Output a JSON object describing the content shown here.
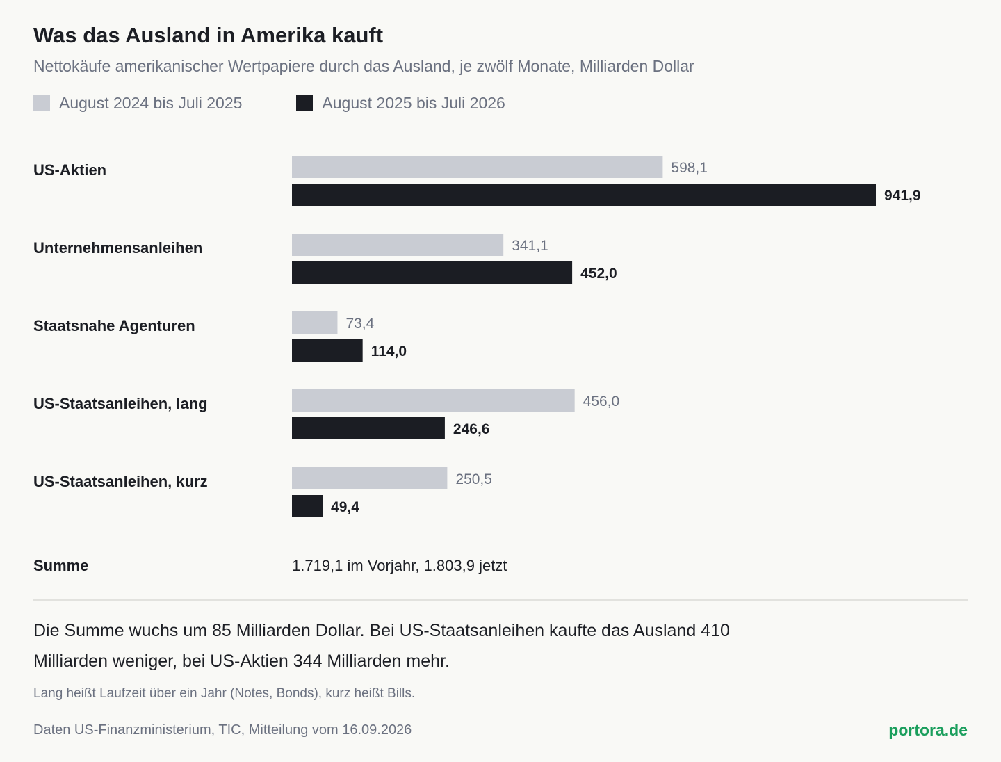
{
  "header": {
    "title": "Was das Ausland in Amerika kauft",
    "subtitle": "Nettokäufe amerikanischer Wertpapiere durch das Ausland, je zwölf Monate, Milliarden Dollar"
  },
  "legend": [
    {
      "label": "August 2024 bis Juli 2025",
      "color": "#c9ccd3"
    },
    {
      "label": "August 2025 bis Juli 2026",
      "color": "#1b1d23"
    }
  ],
  "chart_data": {
    "type": "bar",
    "orientation": "horizontal",
    "categories": [
      "US-Aktien",
      "Unternehmensanleihen",
      "Staatsnahe Agenturen",
      "US-Staatsanleihen, lang",
      "US-Staatsanleihen, kurz"
    ],
    "series": [
      {
        "name": "August 2024 bis Juli 2025",
        "values": [
          598.1,
          341.1,
          73.4,
          456.0,
          250.5
        ],
        "labels": [
          "598,1",
          "341,1",
          "73,4",
          "456,0",
          "250,5"
        ],
        "color": "#c9ccd3"
      },
      {
        "name": "August 2025 bis Juli 2026",
        "values": [
          941.9,
          452.0,
          114.0,
          246.6,
          49.4
        ],
        "labels": [
          "941,9",
          "452,0",
          "114,0",
          "246,6",
          "49,4"
        ],
        "color": "#1b1d23"
      }
    ],
    "xlim": [
      0,
      941.9
    ],
    "grid": false
  },
  "total": {
    "label": "Summe",
    "text": "1.719,1 im Vorjahr, 1.803,9 jetzt"
  },
  "summary": "Die Summe wuchs um 85 Milliarden Dollar. Bei US-Staatsanleihen kaufte das Ausland 410 Milliarden weniger, bei US-Aktien 344 Milliarden mehr.",
  "note": "Lang heißt Laufzeit über ein Jahr (Notes, Bonds), kurz heißt Bills.",
  "source": "Daten US-Finanzministerium, TIC, Mitteilung vom 16.09.2026",
  "brand": {
    "text": "portora.de",
    "color": "#1a9e5c"
  }
}
